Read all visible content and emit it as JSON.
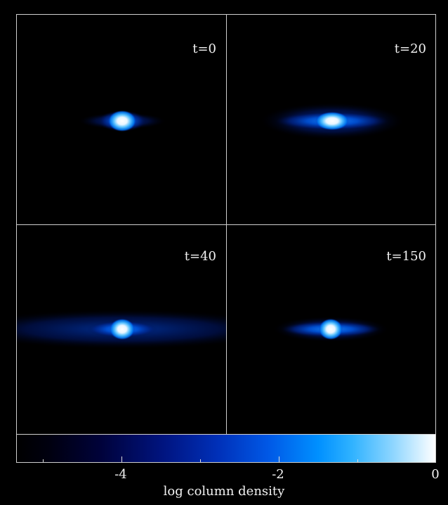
{
  "panels": [
    {
      "label": "t=0"
    },
    {
      "label": "t=20"
    },
    {
      "label": "t=40"
    },
    {
      "label": "t=150"
    }
  ],
  "colorbar": {
    "title": "log column density",
    "tick_labels": [
      "-4",
      "-2",
      "0"
    ],
    "range": [
      -5.3,
      0
    ],
    "colors": [
      "#000000",
      "#001480",
      "#0058e6",
      "#0090ff",
      "#ffffff"
    ]
  }
}
